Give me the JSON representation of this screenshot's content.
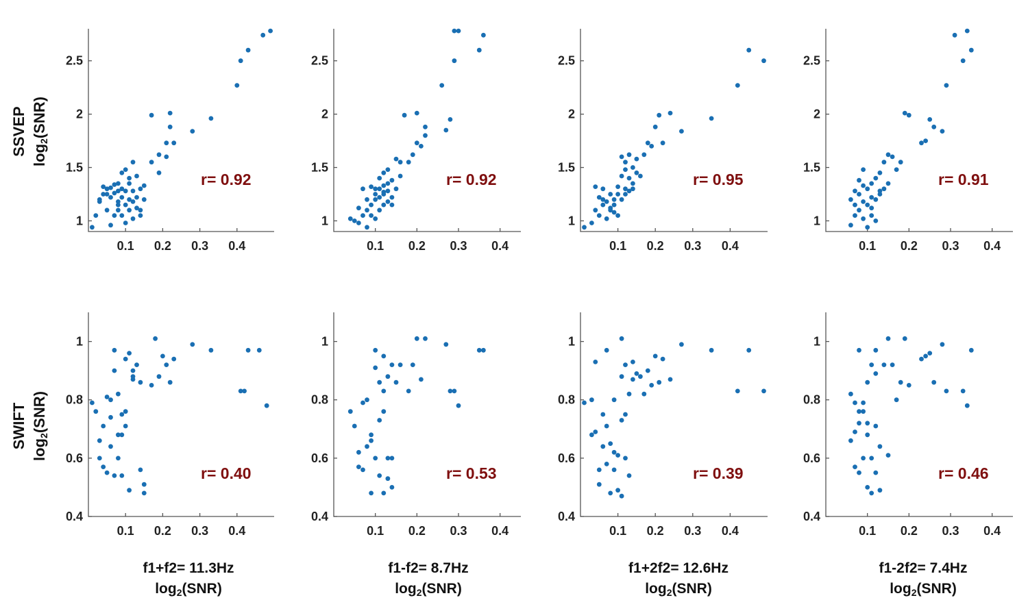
{
  "figure": {
    "rows": [
      {
        "title": "SSVEP",
        "axis_label_prefix": "log",
        "axis_label_sub": "2",
        "axis_label_suffix": "(SNR)"
      },
      {
        "title": "SWIFT",
        "axis_label_prefix": "log",
        "axis_label_sub": "2",
        "axis_label_suffix": "(SNR)"
      }
    ],
    "columns": [
      {
        "title": "f1+f2= 11.3Hz",
        "axis_label_prefix": "log",
        "axis_label_sub": "2",
        "axis_label_suffix": "(SNR)"
      },
      {
        "title": "f1-f2= 8.7Hz",
        "axis_label_prefix": "log",
        "axis_label_sub": "2",
        "axis_label_suffix": "(SNR)"
      },
      {
        "title": "f1+2f2= 12.6Hz",
        "axis_label_prefix": "log",
        "axis_label_sub": "2",
        "axis_label_suffix": "(SNR)"
      },
      {
        "title": "f1-2f2= 7.4Hz",
        "axis_label_prefix": "log",
        "axis_label_sub": "2",
        "axis_label_suffix": "(SNR)"
      }
    ],
    "colors": {
      "points": "#1a6fb3",
      "r_label": "#7f0f0f",
      "axes": "#555555"
    }
  },
  "chart_data": [
    {
      "type": "scatter",
      "row": "SSVEP",
      "column": "f1+f2= 11.3Hz",
      "r_label": "r=  0.92",
      "xlim": [
        0,
        0.5
      ],
      "ylim": [
        0.9,
        2.8
      ],
      "xticks": [
        "0.1",
        "0.2",
        "0.3",
        "0.4"
      ],
      "yticks": [
        "1",
        "1.5",
        "2",
        "2.5"
      ],
      "x": [
        0.01,
        0.02,
        0.03,
        0.04,
        0.04,
        0.05,
        0.05,
        0.06,
        0.06,
        0.06,
        0.07,
        0.07,
        0.07,
        0.08,
        0.08,
        0.08,
        0.08,
        0.09,
        0.09,
        0.09,
        0.09,
        0.1,
        0.1,
        0.1,
        0.1,
        0.11,
        0.11,
        0.11,
        0.12,
        0.12,
        0.12,
        0.12,
        0.13,
        0.13,
        0.13,
        0.14,
        0.14,
        0.15,
        0.15,
        0.17,
        0.17,
        0.19,
        0.19,
        0.21,
        0.21,
        0.22,
        0.22,
        0.23,
        0.28,
        0.33,
        0.4,
        0.41,
        0.43,
        0.47,
        0.49,
        0.03,
        0.05,
        0.08,
        0.11,
        0.14
      ],
      "y": [
        0.94,
        1.05,
        1.18,
        1.32,
        1.25,
        1.1,
        1.3,
        0.96,
        1.22,
        1.31,
        1.05,
        1.26,
        1.34,
        1.1,
        1.18,
        1.28,
        1.35,
        1.05,
        1.22,
        1.3,
        1.45,
        0.98,
        1.15,
        1.28,
        1.48,
        1.1,
        1.2,
        1.35,
        1.02,
        1.18,
        1.28,
        1.55,
        1.12,
        1.22,
        1.42,
        1.05,
        1.3,
        1.2,
        1.33,
        1.55,
        1.99,
        1.62,
        1.45,
        1.6,
        1.73,
        1.88,
        2.01,
        1.73,
        1.84,
        1.96,
        2.27,
        2.5,
        2.6,
        2.74,
        2.78,
        1.2,
        1.25,
        1.15,
        1.4,
        1.1
      ]
    },
    {
      "type": "scatter",
      "row": "SSVEP",
      "column": "f1-f2= 8.7Hz",
      "r_label": "r=  0.92",
      "xlim": [
        0,
        0.45
      ],
      "ylim": [
        0.9,
        2.8
      ],
      "xticks": [
        "0.1",
        "0.2",
        "0.3",
        "0.4"
      ],
      "yticks": [
        "1",
        "1.5",
        "2",
        "2.5"
      ],
      "x": [
        0.04,
        0.06,
        0.06,
        0.07,
        0.07,
        0.08,
        0.08,
        0.08,
        0.09,
        0.09,
        0.09,
        0.1,
        0.1,
        0.1,
        0.11,
        0.11,
        0.11,
        0.11,
        0.12,
        0.12,
        0.12,
        0.12,
        0.13,
        0.13,
        0.13,
        0.13,
        0.14,
        0.14,
        0.15,
        0.15,
        0.16,
        0.16,
        0.17,
        0.18,
        0.19,
        0.2,
        0.2,
        0.21,
        0.22,
        0.22,
        0.26,
        0.27,
        0.28,
        0.29,
        0.29,
        0.3,
        0.35,
        0.36,
        0.05,
        0.1,
        0.12,
        0.14
      ],
      "y": [
        1.02,
        0.98,
        1.12,
        1.05,
        1.3,
        0.94,
        1.1,
        1.2,
        1.05,
        1.15,
        1.32,
        1.02,
        1.2,
        1.3,
        1.1,
        1.22,
        1.3,
        1.4,
        1.15,
        1.25,
        1.33,
        1.45,
        1.18,
        1.28,
        1.35,
        1.48,
        1.22,
        1.38,
        1.3,
        1.58,
        1.42,
        1.55,
        1.99,
        1.55,
        1.62,
        1.73,
        2.01,
        1.7,
        1.88,
        1.8,
        2.27,
        1.85,
        1.95,
        2.5,
        2.78,
        2.78,
        2.6,
        2.74,
        1.0,
        1.25,
        1.27,
        1.15
      ]
    },
    {
      "type": "scatter",
      "row": "SSVEP",
      "column": "f1+2f2= 12.6Hz",
      "r_label": "r=  0.95",
      "xlim": [
        0,
        0.5
      ],
      "ylim": [
        0.9,
        2.8
      ],
      "xticks": [
        "0.1",
        "0.2",
        "0.3",
        "0.4"
      ],
      "yticks": [
        "1",
        "1.5",
        "2",
        "2.5"
      ],
      "x": [
        0.01,
        0.03,
        0.04,
        0.05,
        0.05,
        0.06,
        0.06,
        0.07,
        0.07,
        0.08,
        0.08,
        0.09,
        0.09,
        0.1,
        0.1,
        0.1,
        0.11,
        0.11,
        0.12,
        0.12,
        0.12,
        0.13,
        0.13,
        0.13,
        0.14,
        0.14,
        0.15,
        0.15,
        0.16,
        0.17,
        0.18,
        0.19,
        0.2,
        0.21,
        0.22,
        0.24,
        0.27,
        0.35,
        0.42,
        0.45,
        0.49,
        0.04,
        0.06,
        0.09,
        0.11,
        0.14,
        0.08,
        0.12
      ],
      "y": [
        0.94,
        0.98,
        1.1,
        1.05,
        1.22,
        1.15,
        1.3,
        1.02,
        1.18,
        1.1,
        1.25,
        1.08,
        1.2,
        1.05,
        1.25,
        1.32,
        1.2,
        1.42,
        1.3,
        1.48,
        1.55,
        1.28,
        1.4,
        1.62,
        1.35,
        1.5,
        1.45,
        1.58,
        1.42,
        1.62,
        1.73,
        1.7,
        1.88,
        1.99,
        1.73,
        2.01,
        1.84,
        1.96,
        2.27,
        2.6,
        2.5,
        1.32,
        1.2,
        1.15,
        1.6,
        1.3,
        1.12,
        1.25
      ]
    },
    {
      "type": "scatter",
      "row": "SSVEP",
      "column": "f1-2f2= 7.4Hz",
      "r_label": "r=  0.91",
      "xlim": [
        0,
        0.45
      ],
      "ylim": [
        0.9,
        2.8
      ],
      "xticks": [
        "0.1",
        "0.2",
        "0.3",
        "0.4"
      ],
      "yticks": [
        "1",
        "1.5",
        "2",
        "2.5"
      ],
      "x": [
        0.06,
        0.06,
        0.07,
        0.07,
        0.08,
        0.08,
        0.08,
        0.09,
        0.09,
        0.09,
        0.1,
        0.1,
        0.1,
        0.11,
        0.11,
        0.11,
        0.12,
        0.12,
        0.12,
        0.13,
        0.13,
        0.14,
        0.14,
        0.15,
        0.15,
        0.16,
        0.17,
        0.18,
        0.19,
        0.2,
        0.23,
        0.24,
        0.25,
        0.26,
        0.28,
        0.29,
        0.31,
        0.33,
        0.34,
        0.35,
        0.07,
        0.09,
        0.11,
        0.13
      ],
      "y": [
        0.96,
        1.2,
        1.05,
        1.28,
        1.1,
        1.25,
        1.38,
        1.02,
        1.18,
        1.33,
        0.94,
        1.15,
        1.3,
        1.05,
        1.22,
        1.35,
        1.0,
        1.2,
        1.4,
        1.25,
        1.45,
        1.3,
        1.55,
        1.35,
        1.62,
        1.6,
        1.48,
        1.55,
        2.01,
        1.99,
        1.73,
        1.75,
        1.95,
        1.88,
        1.84,
        2.27,
        2.74,
        2.5,
        2.78,
        2.6,
        1.15,
        1.48,
        1.12,
        1.28
      ]
    },
    {
      "type": "scatter",
      "row": "SWIFT",
      "column": "f1+f2= 11.3Hz",
      "r_label": "r=  0.40",
      "xlim": [
        0,
        0.5
      ],
      "ylim": [
        0.4,
        1.1
      ],
      "xticks": [
        "0.1",
        "0.2",
        "0.3",
        "0.4"
      ],
      "yticks": [
        "0.4",
        "0.6",
        "0.8",
        "1"
      ],
      "x": [
        0.01,
        0.02,
        0.03,
        0.03,
        0.04,
        0.04,
        0.05,
        0.05,
        0.06,
        0.06,
        0.06,
        0.07,
        0.07,
        0.08,
        0.08,
        0.08,
        0.09,
        0.09,
        0.09,
        0.1,
        0.1,
        0.11,
        0.11,
        0.12,
        0.12,
        0.13,
        0.14,
        0.14,
        0.15,
        0.15,
        0.17,
        0.18,
        0.19,
        0.2,
        0.21,
        0.22,
        0.23,
        0.28,
        0.33,
        0.41,
        0.42,
        0.43,
        0.46,
        0.48,
        0.07,
        0.1,
        0.12
      ],
      "y": [
        0.79,
        0.76,
        0.66,
        0.6,
        0.57,
        0.71,
        0.55,
        0.81,
        0.64,
        0.8,
        0.74,
        0.54,
        0.97,
        0.68,
        0.82,
        0.6,
        0.54,
        0.75,
        0.68,
        0.71,
        0.94,
        0.49,
        0.96,
        0.9,
        0.87,
        0.92,
        0.56,
        0.86,
        0.48,
        0.51,
        0.85,
        1.01,
        0.88,
        0.95,
        0.92,
        0.86,
        0.94,
        0.99,
        0.97,
        0.83,
        0.83,
        0.97,
        0.97,
        0.78,
        0.9,
        0.76,
        0.88
      ]
    },
    {
      "type": "scatter",
      "row": "SWIFT",
      "column": "f1-f2= 8.7Hz",
      "r_label": "r=  0.53",
      "xlim": [
        0,
        0.45
      ],
      "ylim": [
        0.4,
        1.1
      ],
      "xticks": [
        "0.1",
        "0.2",
        "0.3",
        "0.4"
      ],
      "yticks": [
        "0.4",
        "0.6",
        "0.8",
        "1"
      ],
      "x": [
        0.04,
        0.05,
        0.06,
        0.06,
        0.07,
        0.07,
        0.08,
        0.08,
        0.09,
        0.09,
        0.1,
        0.1,
        0.1,
        0.11,
        0.11,
        0.11,
        0.12,
        0.12,
        0.12,
        0.13,
        0.13,
        0.14,
        0.14,
        0.14,
        0.15,
        0.16,
        0.18,
        0.19,
        0.2,
        0.21,
        0.22,
        0.27,
        0.28,
        0.29,
        0.3,
        0.35,
        0.36,
        0.09,
        0.12,
        0.13
      ],
      "y": [
        0.76,
        0.71,
        0.62,
        0.57,
        0.56,
        0.79,
        0.8,
        0.64,
        0.48,
        0.68,
        0.6,
        0.91,
        0.97,
        0.54,
        0.73,
        0.86,
        0.48,
        0.83,
        0.95,
        0.6,
        0.88,
        0.5,
        0.6,
        0.92,
        0.86,
        0.92,
        0.83,
        0.92,
        1.01,
        0.87,
        1.01,
        0.99,
        0.83,
        0.83,
        0.78,
        0.97,
        0.97,
        0.66,
        0.76,
        0.53
      ]
    },
    {
      "type": "scatter",
      "row": "SWIFT",
      "column": "f1+2f2= 12.6Hz",
      "r_label": "r=  0.39",
      "xlim": [
        0,
        0.5
      ],
      "ylim": [
        0.4,
        1.1
      ],
      "xticks": [
        "0.1",
        "0.2",
        "0.3",
        "0.4"
      ],
      "yticks": [
        "0.4",
        "0.6",
        "0.8",
        "1"
      ],
      "x": [
        0.01,
        0.03,
        0.03,
        0.04,
        0.04,
        0.05,
        0.05,
        0.06,
        0.06,
        0.07,
        0.07,
        0.08,
        0.08,
        0.09,
        0.09,
        0.1,
        0.1,
        0.11,
        0.11,
        0.11,
        0.12,
        0.12,
        0.12,
        0.13,
        0.13,
        0.14,
        0.14,
        0.15,
        0.16,
        0.17,
        0.18,
        0.19,
        0.2,
        0.21,
        0.22,
        0.24,
        0.27,
        0.35,
        0.42,
        0.45,
        0.49,
        0.07,
        0.09,
        0.11
      ],
      "y": [
        0.79,
        0.68,
        0.8,
        0.69,
        0.93,
        0.51,
        0.56,
        0.64,
        0.75,
        0.58,
        0.97,
        0.48,
        0.65,
        0.56,
        0.8,
        0.49,
        0.61,
        0.73,
        0.88,
        1.01,
        0.6,
        0.75,
        0.92,
        0.54,
        0.82,
        0.87,
        0.93,
        0.89,
        0.88,
        0.82,
        0.9,
        0.85,
        0.95,
        0.86,
        0.94,
        0.87,
        0.99,
        0.97,
        0.83,
        0.97,
        0.83,
        0.71,
        0.62,
        0.47
      ]
    },
    {
      "type": "scatter",
      "row": "SWIFT",
      "column": "f1-2f2= 7.4Hz",
      "r_label": "r=  0.46",
      "xlim": [
        0,
        0.45
      ],
      "ylim": [
        0.4,
        1.1
      ],
      "xticks": [
        "0.1",
        "0.2",
        "0.3",
        "0.4"
      ],
      "yticks": [
        "0.4",
        "0.6",
        "0.8",
        "1"
      ],
      "x": [
        0.06,
        0.06,
        0.07,
        0.07,
        0.07,
        0.08,
        0.08,
        0.08,
        0.09,
        0.09,
        0.09,
        0.1,
        0.1,
        0.1,
        0.11,
        0.11,
        0.11,
        0.12,
        0.12,
        0.12,
        0.13,
        0.13,
        0.14,
        0.15,
        0.15,
        0.16,
        0.17,
        0.18,
        0.19,
        0.2,
        0.23,
        0.24,
        0.25,
        0.26,
        0.28,
        0.29,
        0.33,
        0.34,
        0.35,
        0.08,
        0.1,
        0.12
      ],
      "y": [
        0.66,
        0.82,
        0.69,
        0.79,
        0.57,
        0.55,
        0.72,
        0.97,
        0.6,
        0.76,
        0.79,
        0.5,
        0.68,
        0.86,
        0.48,
        0.6,
        0.92,
        0.55,
        0.89,
        0.97,
        0.49,
        0.64,
        0.92,
        0.61,
        1.01,
        0.92,
        0.8,
        0.86,
        1.01,
        0.85,
        0.94,
        0.95,
        0.96,
        0.86,
        0.99,
        0.83,
        0.83,
        0.78,
        0.97,
        0.76,
        0.72,
        0.71
      ]
    }
  ]
}
